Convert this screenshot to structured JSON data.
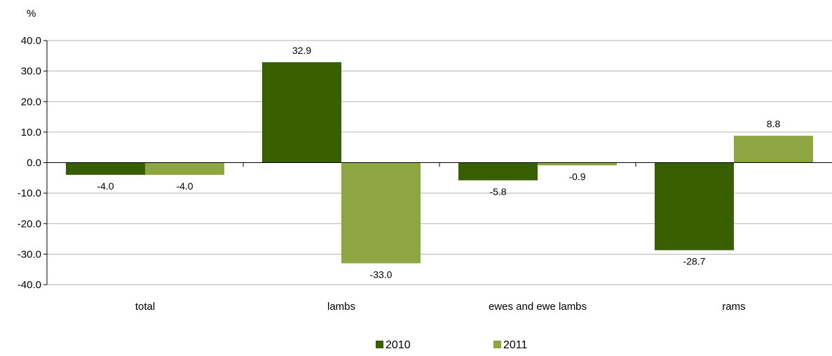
{
  "chart_data": {
    "type": "bar",
    "title": "",
    "unit_label": "%",
    "xlabel": "",
    "ylabel": "%",
    "categories": [
      "total",
      "lambs",
      "ewes and ewe lambs",
      "rams"
    ],
    "series": [
      {
        "name": "2010",
        "color": "#375F00",
        "values": [
          -4.0,
          32.9,
          -5.8,
          -28.7
        ]
      },
      {
        "name": "2011",
        "color": "#8EA641",
        "values": [
          -4.0,
          -33.0,
          -0.9,
          8.8
        ]
      }
    ],
    "ylim": [
      -40,
      40
    ],
    "yticks": [
      "40.0",
      "30.0",
      "20.0",
      "10.0",
      "0.0",
      "-10.0",
      "-20.0",
      "-30.0",
      "-40.0"
    ],
    "grid": true,
    "legend_position": "bottom"
  }
}
